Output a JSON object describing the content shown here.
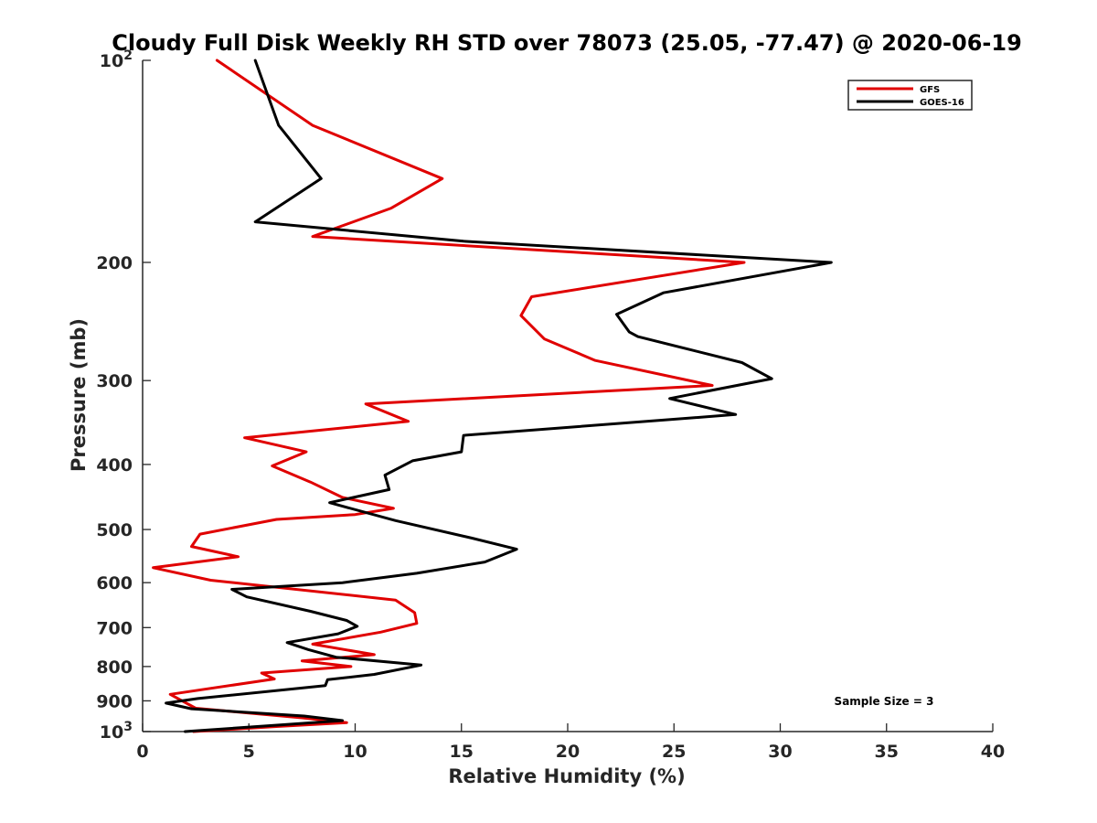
{
  "chart_data": {
    "type": "line",
    "title": "Cloudy Full Disk Weekly RH STD over 78073 (25.05, -77.47) @ 2020-06-19",
    "xlabel": "Relative Humidity (%)",
    "ylabel": "Pressure (mb)",
    "xlim": [
      0,
      40
    ],
    "ylim": [
      100,
      1000
    ],
    "y_scale": "log",
    "y_reversed": true,
    "x_ticks": [
      0,
      5,
      10,
      15,
      20,
      25,
      30,
      35,
      40
    ],
    "x_tick_labels": [
      "0",
      "5",
      "10",
      "15",
      "20",
      "25",
      "30",
      "35",
      "40"
    ],
    "y_ticks": [
      200,
      300,
      400,
      500,
      600,
      700,
      800,
      900
    ],
    "y_tick_labels": [
      "200",
      "300",
      "400",
      "500",
      "600",
      "700",
      "800",
      "900"
    ],
    "y_end_labels": {
      "top_base": "10",
      "top_exp": "2",
      "bottom_base": "10",
      "bottom_exp": "3"
    },
    "grid": false,
    "legend_position": "top-right",
    "annotation": "Sample Size = 3",
    "series": [
      {
        "name": "GFS",
        "color": "#e00000",
        "points": [
          [
            3.5,
            100
          ],
          [
            8,
            125
          ],
          [
            14.1,
            150
          ],
          [
            11.7,
            166
          ],
          [
            8,
            183
          ],
          [
            28.3,
            200
          ],
          [
            18.3,
            225
          ],
          [
            17.8,
            240
          ],
          [
            18.9,
            260
          ],
          [
            21.3,
            280
          ],
          [
            26.8,
            305
          ],
          [
            10.5,
            325
          ],
          [
            12.5,
            345
          ],
          [
            4.8,
            365
          ],
          [
            7.7,
            383
          ],
          [
            6.1,
            402
          ],
          [
            7.9,
            425
          ],
          [
            9.4,
            448
          ],
          [
            11.8,
            465
          ],
          [
            10,
            475
          ],
          [
            6.3,
            483
          ],
          [
            2.7,
            508
          ],
          [
            2.3,
            530
          ],
          [
            4.5,
            549
          ],
          [
            0.5,
            570
          ],
          [
            3.2,
            595
          ],
          [
            11.9,
            637
          ],
          [
            12.8,
            665
          ],
          [
            12.9,
            690
          ],
          [
            11.2,
            711
          ],
          [
            8,
            741
          ],
          [
            10.9,
            768
          ],
          [
            7.5,
            785
          ],
          [
            9.8,
            800
          ],
          [
            5.6,
            818
          ],
          [
            6.2,
            835
          ],
          [
            1.3,
            880
          ],
          [
            2.5,
            923
          ],
          [
            7.5,
            954
          ],
          [
            9.6,
            970
          ],
          [
            6.3,
            983
          ],
          [
            2.4,
            1000
          ]
        ]
      },
      {
        "name": "GOES-16",
        "color": "#000000",
        "points": [
          [
            5.3,
            100
          ],
          [
            6.4,
            125
          ],
          [
            8.4,
            150
          ],
          [
            5.3,
            174
          ],
          [
            11.9,
            182
          ],
          [
            15.1,
            186
          ],
          [
            32.4,
            200
          ],
          [
            24.5,
            222
          ],
          [
            22.3,
            239
          ],
          [
            22.9,
            254
          ],
          [
            23.3,
            258
          ],
          [
            28.2,
            282
          ],
          [
            29.6,
            298
          ],
          [
            24.8,
            319
          ],
          [
            27.9,
            337
          ],
          [
            15.1,
            362
          ],
          [
            15,
            383
          ],
          [
            12.7,
            395
          ],
          [
            11.4,
            415
          ],
          [
            11.6,
            436
          ],
          [
            8.8,
            456
          ],
          [
            11.9,
            485
          ],
          [
            15.5,
            515
          ],
          [
            17.6,
            535
          ],
          [
            16.1,
            559
          ],
          [
            12.9,
            581
          ],
          [
            9.4,
            600
          ],
          [
            4.2,
            614
          ],
          [
            4.9,
            630
          ],
          [
            7.9,
            662
          ],
          [
            9.6,
            683
          ],
          [
            10.1,
            697
          ],
          [
            9.2,
            715
          ],
          [
            6.8,
            737
          ],
          [
            7.8,
            755
          ],
          [
            9.1,
            775
          ],
          [
            13.1,
            796
          ],
          [
            10.9,
            822
          ],
          [
            8.7,
            837
          ],
          [
            8.6,
            854
          ],
          [
            2.6,
            893
          ],
          [
            1.1,
            907
          ],
          [
            2.3,
            925
          ],
          [
            7.6,
            948
          ],
          [
            9.4,
            963
          ],
          [
            6.4,
            978
          ],
          [
            2,
            1000
          ]
        ]
      }
    ]
  }
}
